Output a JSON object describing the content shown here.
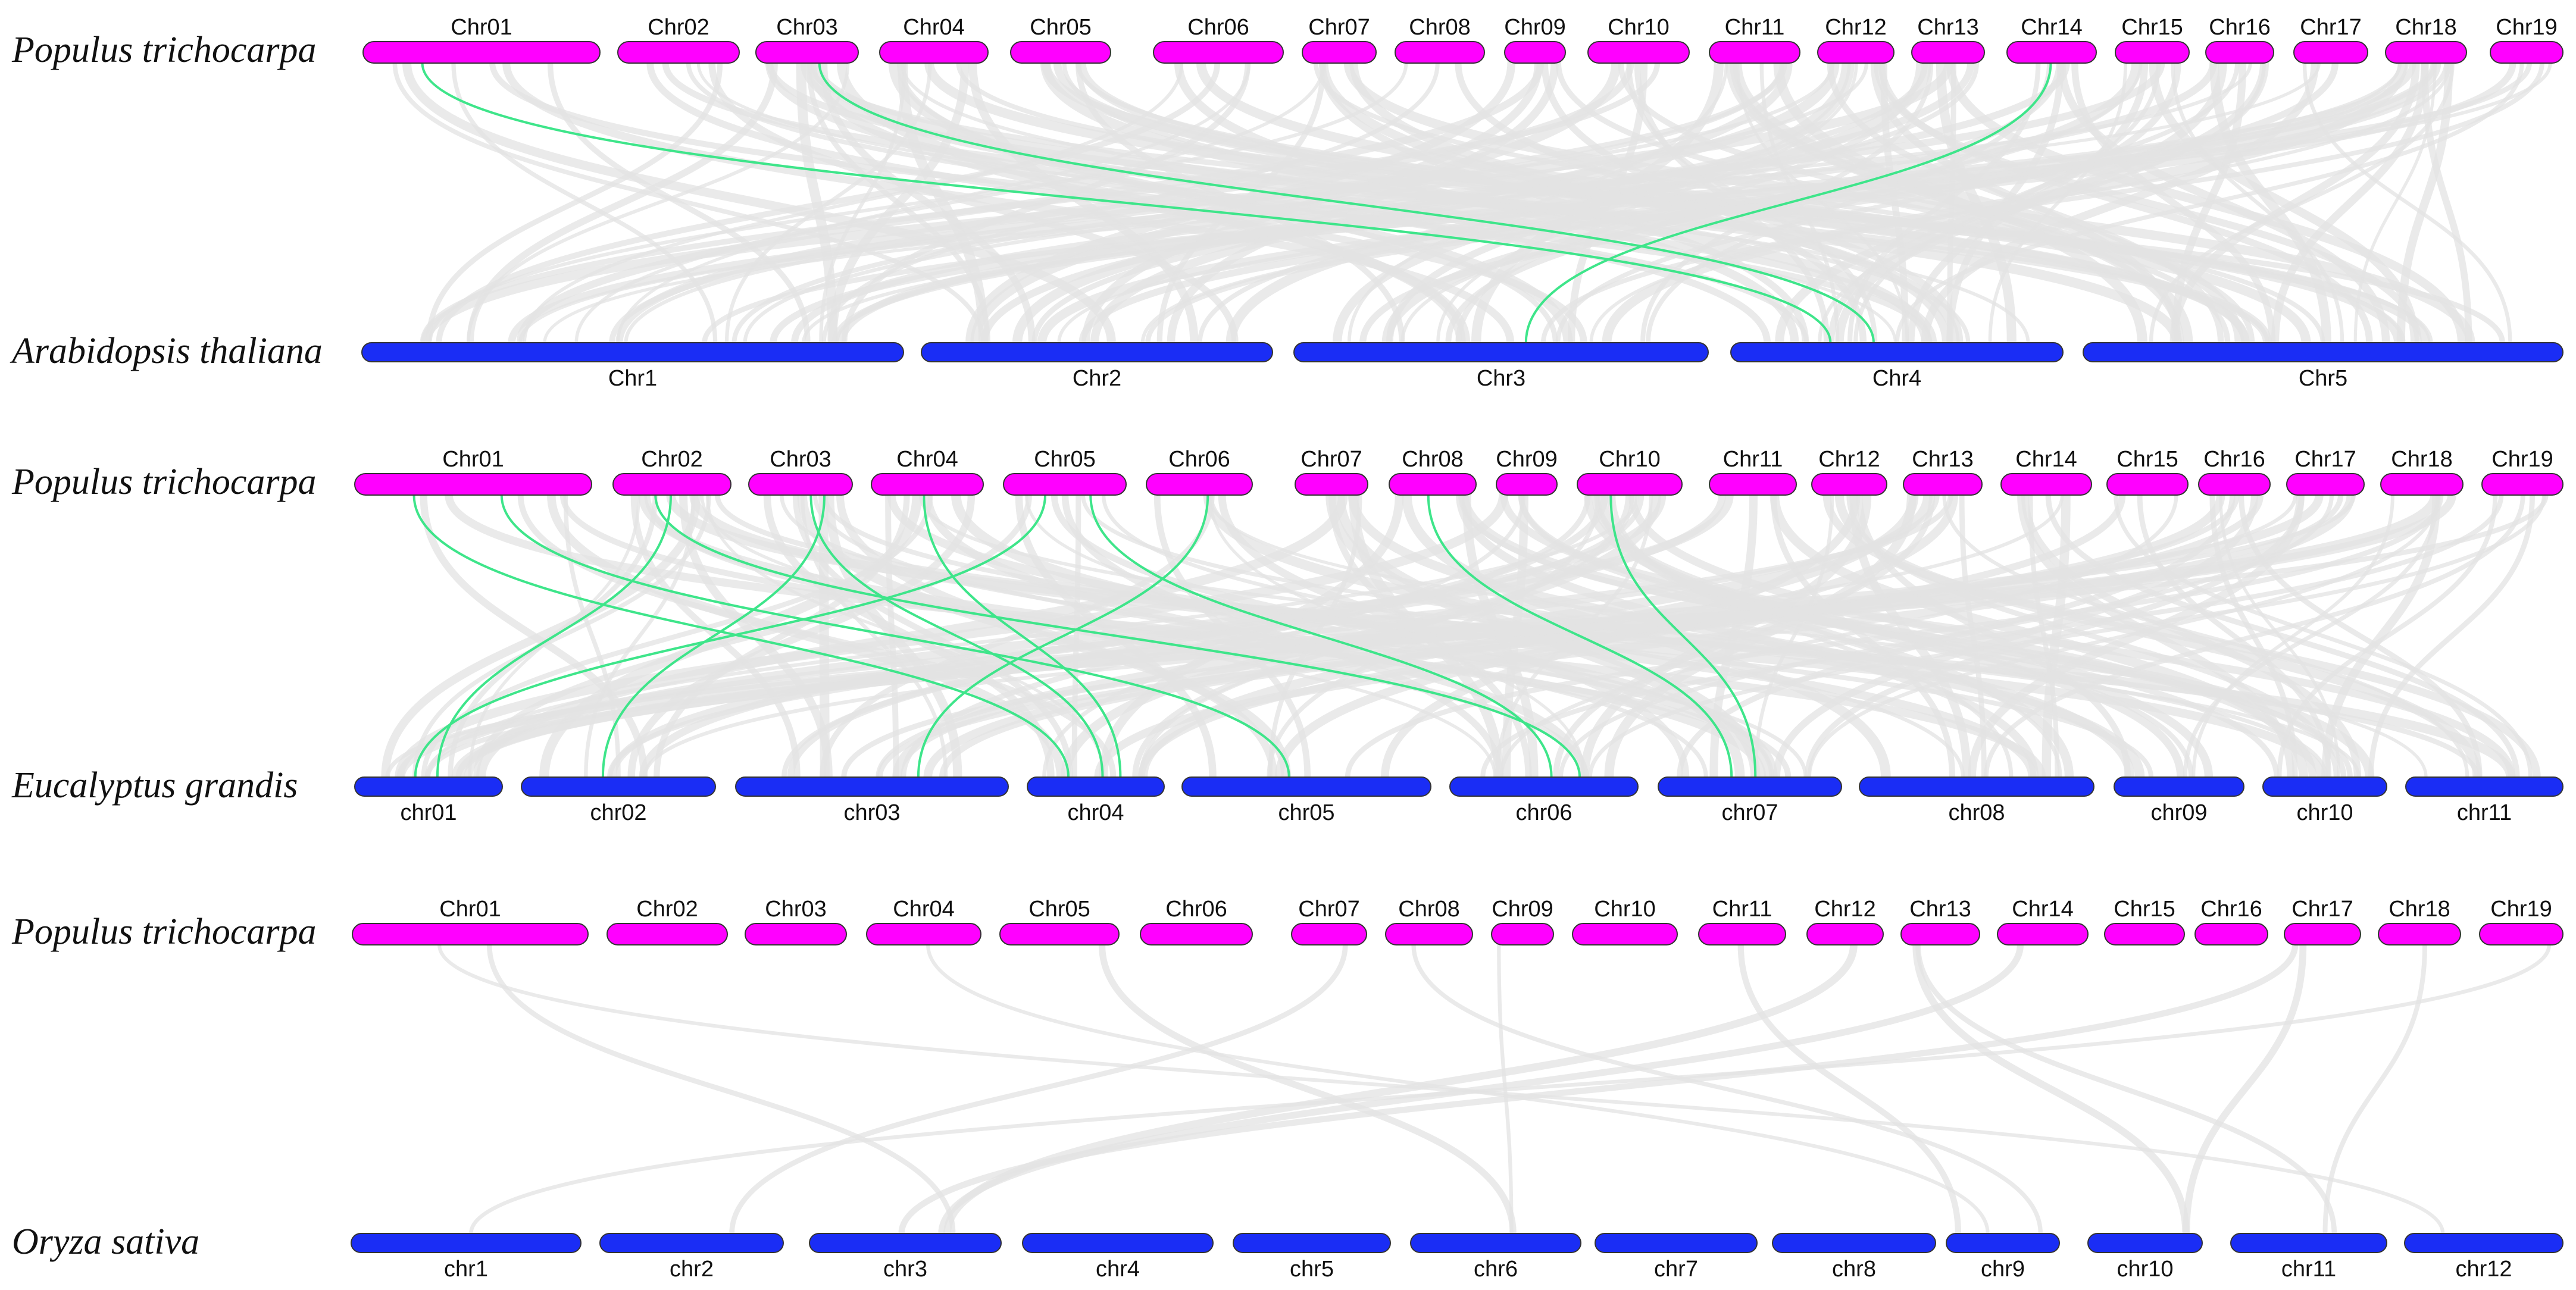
{
  "colors": {
    "top_chromosome": "#ff00ff",
    "bottom_chromosome": "#1a2df5",
    "chromosome_outline": "#333333",
    "background_link": "#e3e3e3",
    "highlight_link": "#3ee58a"
  },
  "panels": [
    {
      "top": {
        "species": "Populus trichocarpa",
        "chromosomes": [
          "Chr01",
          "Chr02",
          "Chr03",
          "Chr04",
          "Chr05",
          "Chr06",
          "Chr07",
          "Chr08",
          "Chr09",
          "Chr10",
          "Chr11",
          "Chr12",
          "Chr13",
          "Chr14",
          "Chr15",
          "Chr16",
          "Chr17",
          "Chr18",
          "Chr19"
        ]
      },
      "bottom": {
        "species": "Arabidopsis thaliana",
        "chromosomes": [
          "Chr1",
          "Chr2",
          "Chr3",
          "Chr4",
          "Chr5"
        ]
      },
      "highlight_links": [
        {
          "top_chr": "Chr01",
          "bottom_chr": "Chr4"
        },
        {
          "top_chr": "Chr03",
          "bottom_chr": "Chr4"
        },
        {
          "top_chr": "Chr14",
          "bottom_chr": "Chr3"
        }
      ]
    },
    {
      "top": {
        "species": "Populus trichocarpa",
        "chromosomes": [
          "Chr01",
          "Chr02",
          "Chr03",
          "Chr04",
          "Chr05",
          "Chr06",
          "Chr07",
          "Chr08",
          "Chr09",
          "Chr10",
          "Chr11",
          "Chr12",
          "Chr13",
          "Chr14",
          "Chr15",
          "Chr16",
          "Chr17",
          "Chr18",
          "Chr19"
        ]
      },
      "bottom": {
        "species": "Eucalyptus grandis",
        "chromosomes": [
          "chr01",
          "chr02",
          "chr03",
          "chr04",
          "chr05",
          "chr06",
          "chr07",
          "chr08",
          "chr09",
          "chr10",
          "chr11"
        ]
      },
      "highlight_links": [
        {
          "top_chr": "Chr01",
          "bottom_chr": "chr04"
        },
        {
          "top_chr": "Chr01",
          "bottom_chr": "chr05"
        },
        {
          "top_chr": "Chr02",
          "bottom_chr": "chr01"
        },
        {
          "top_chr": "Chr02",
          "bottom_chr": "chr06"
        },
        {
          "top_chr": "Chr03",
          "bottom_chr": "chr02"
        },
        {
          "top_chr": "Chr03",
          "bottom_chr": "chr04"
        },
        {
          "top_chr": "Chr04",
          "bottom_chr": "chr04"
        },
        {
          "top_chr": "Chr05",
          "bottom_chr": "chr01"
        },
        {
          "top_chr": "Chr05",
          "bottom_chr": "chr06"
        },
        {
          "top_chr": "Chr06",
          "bottom_chr": "chr03"
        },
        {
          "top_chr": "Chr08",
          "bottom_chr": "chr07"
        },
        {
          "top_chr": "Chr10",
          "bottom_chr": "chr07"
        }
      ]
    },
    {
      "top": {
        "species": "Populus trichocarpa",
        "chromosomes": [
          "Chr01",
          "Chr02",
          "Chr03",
          "Chr04",
          "Chr05",
          "Chr06",
          "Chr07",
          "Chr08",
          "Chr09",
          "Chr10",
          "Chr11",
          "Chr12",
          "Chr13",
          "Chr14",
          "Chr15",
          "Chr16",
          "Chr17",
          "Chr18",
          "Chr19"
        ]
      },
      "bottom": {
        "species": "Oryza sativa",
        "chromosomes": [
          "chr1",
          "chr2",
          "chr3",
          "chr4",
          "chr5",
          "chr6",
          "chr7",
          "chr8",
          "chr9",
          "chr10",
          "chr11",
          "chr12"
        ]
      },
      "highlight_links": []
    }
  ]
}
